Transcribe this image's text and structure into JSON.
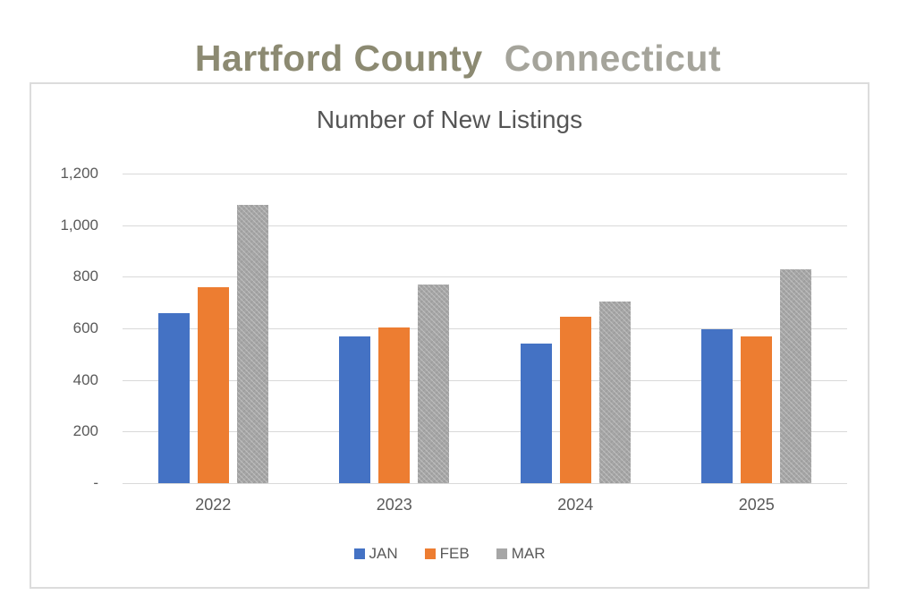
{
  "page_title": {
    "primary": "Hartford County",
    "secondary": "Connecticut"
  },
  "chart_data": {
    "type": "bar",
    "title": "Number of New Listings",
    "categories": [
      "2022",
      "2023",
      "2024",
      "2025"
    ],
    "series": [
      {
        "name": "JAN",
        "color": "#4472C4",
        "pattern": false,
        "values": [
          660,
          570,
          540,
          595
        ]
      },
      {
        "name": "FEB",
        "color": "#ED7D31",
        "pattern": false,
        "values": [
          760,
          605,
          645,
          570
        ]
      },
      {
        "name": "MAR",
        "color": "#A6A6A6",
        "pattern": true,
        "values": [
          1080,
          770,
          705,
          830
        ]
      }
    ],
    "ylim": [
      0,
      1200
    ],
    "yticks": [
      {
        "value": 0,
        "label": "-"
      },
      {
        "value": 200,
        "label": "200"
      },
      {
        "value": 400,
        "label": "400"
      },
      {
        "value": 600,
        "label": "600"
      },
      {
        "value": 800,
        "label": "800"
      },
      {
        "value": 1000,
        "label": "1,000"
      },
      {
        "value": 1200,
        "label": "1,200"
      }
    ],
    "grid": true,
    "legend_position": "bottom"
  },
  "colors": {
    "title_primary": "#8C8A72",
    "title_secondary": "#A5A49B",
    "axis_text": "#595959",
    "chart_title_text": "#555555",
    "gridline": "#D9D9D9",
    "box_border": "#DCDCDC",
    "jan": "#4472C4",
    "feb": "#ED7D31",
    "mar": "#A6A6A6"
  }
}
